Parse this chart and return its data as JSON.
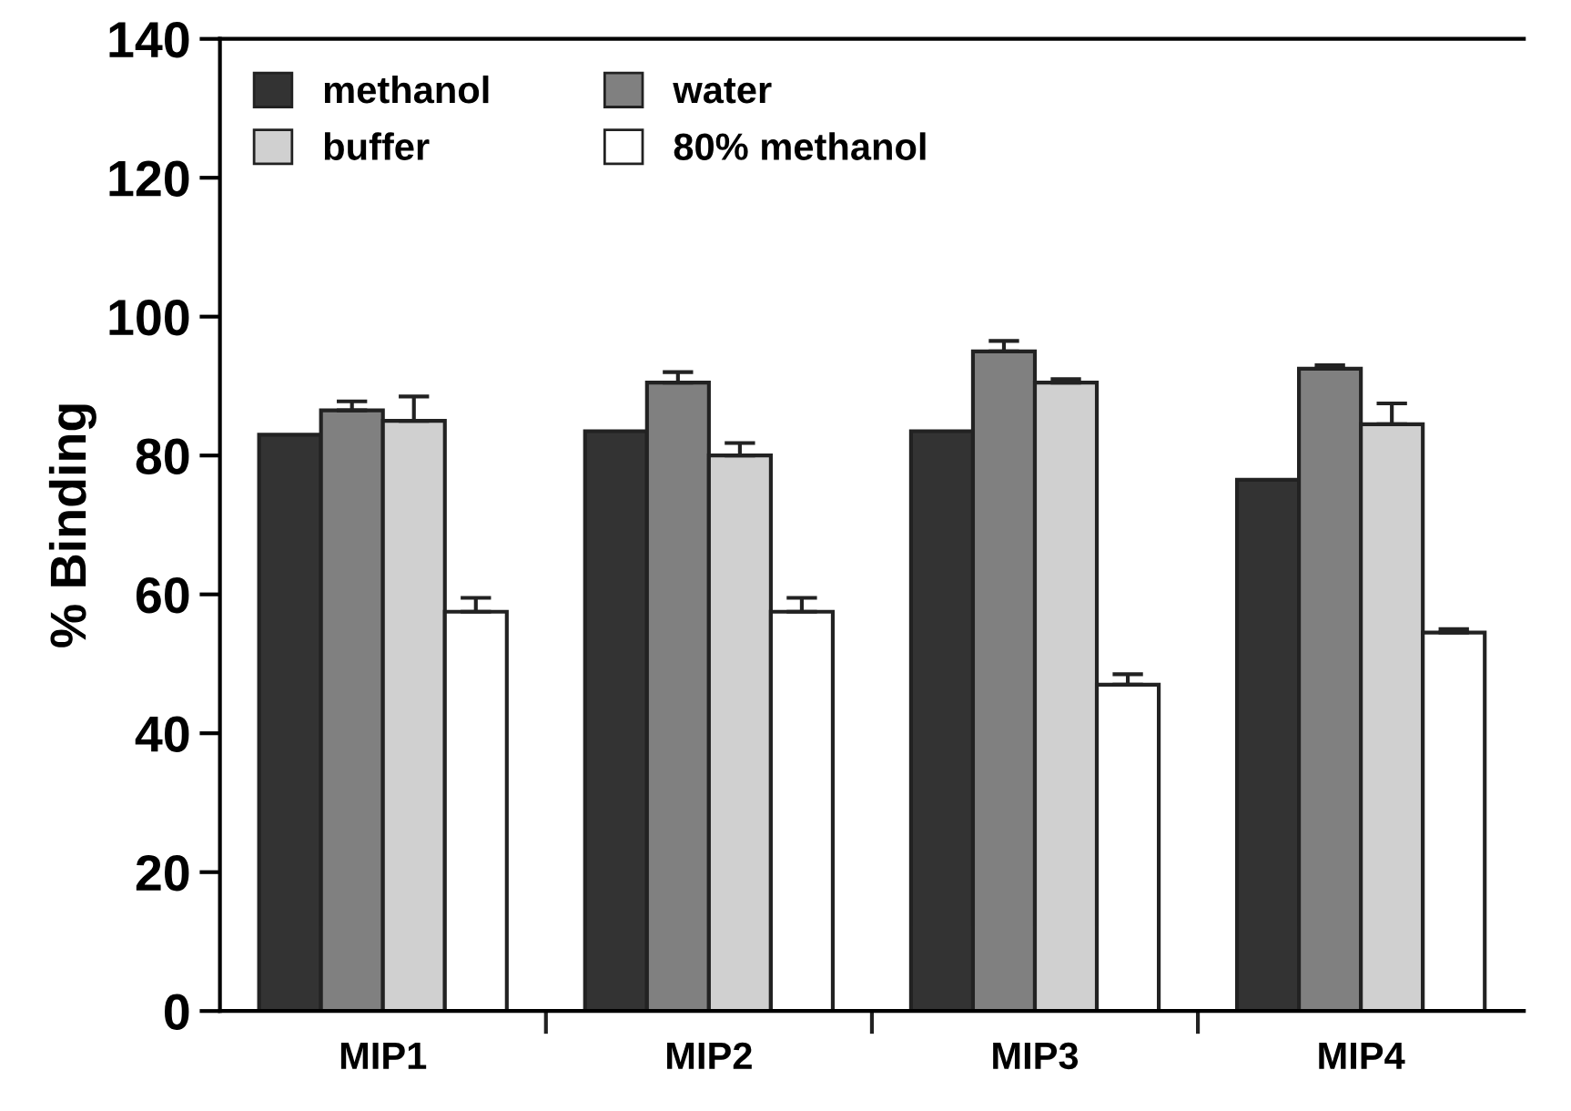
{
  "chart_data": {
    "type": "bar",
    "ylabel": "% Binding",
    "categories": [
      "MIP1",
      "MIP2",
      "MIP3",
      "MIP4"
    ],
    "ylim": [
      0,
      140
    ],
    "yticks": [
      0,
      20,
      40,
      60,
      80,
      100,
      120,
      140
    ],
    "grid": false,
    "legend": "top left",
    "series": [
      {
        "name": "methanol",
        "color": "#333333",
        "values": [
          83,
          83.5,
          83.5,
          76.5
        ]
      },
      {
        "name": "water",
        "color": "#808080",
        "values": [
          86.5,
          90.5,
          95,
          92.5
        ],
        "errors": [
          [
            86.5,
            87.8
          ],
          [
            90.5,
            92
          ],
          [
            95,
            96.5
          ],
          [
            92.5,
            93
          ]
        ]
      },
      {
        "name": "buffer",
        "color": "#d0d0d0",
        "values": [
          85,
          80,
          90.5,
          84.5
        ],
        "errors": [
          [
            85,
            88.5
          ],
          [
            80,
            81.8
          ],
          [
            90.5,
            91
          ],
          [
            84.5,
            87.5
          ]
        ]
      },
      {
        "name": "80% methanol",
        "color": "#ffffff",
        "values": [
          57.5,
          57.5,
          47,
          54.5
        ],
        "errors": [
          [
            57.5,
            59.5
          ],
          [
            57.5,
            59.5
          ],
          [
            47,
            48.5
          ],
          [
            54.5,
            55
          ]
        ]
      }
    ]
  }
}
